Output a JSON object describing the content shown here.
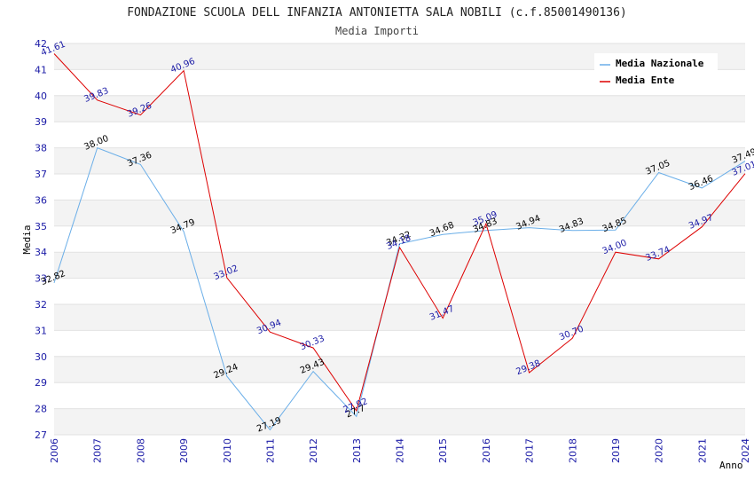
{
  "chart_data": {
    "type": "line",
    "title": "FONDAZIONE SCUOLA DELL INFANZIA ANTONIETTA SALA NOBILI (c.f.85001490136)",
    "subtitle": "Media Importi",
    "xlabel": "Anno",
    "ylabel": "Media",
    "ylim": [
      27,
      42
    ],
    "yticks": [
      27,
      28,
      29,
      30,
      31,
      32,
      33,
      34,
      35,
      36,
      37,
      38,
      39,
      40,
      41,
      42
    ],
    "x": [
      "2006",
      "2007",
      "2008",
      "2009",
      "2010",
      "2011",
      "2012",
      "2013",
      "2014",
      "2015",
      "2016",
      "2017",
      "2018",
      "2019",
      "2020",
      "2021",
      "2024"
    ],
    "legend_position": "top-right",
    "grid": true,
    "series": [
      {
        "name": "Media Nazionale",
        "color": "#6aaee8",
        "label_color": "#000000",
        "values": [
          32.82,
          38.0,
          37.36,
          34.79,
          29.24,
          27.19,
          29.43,
          27.7,
          34.32,
          34.68,
          34.83,
          34.94,
          34.83,
          34.85,
          37.05,
          36.46,
          37.49
        ],
        "labels": [
          "32.82",
          "38.00",
          "37.36",
          "34.79",
          "29.24",
          "27.19",
          "29.43",
          "27.7",
          "34.32",
          "34.68",
          "34.83",
          "34.94",
          "34.83",
          "34.85",
          "37.05",
          "36.46",
          "37.49"
        ]
      },
      {
        "name": "Media Ente",
        "color": "#dd0000",
        "label_color": "#1a1aa6",
        "values": [
          41.61,
          39.83,
          39.26,
          40.96,
          33.02,
          30.94,
          30.33,
          27.92,
          34.18,
          31.47,
          35.09,
          29.38,
          30.7,
          34.0,
          33.74,
          34.97,
          37.01
        ],
        "labels": [
          "41.61",
          "39.83",
          "39.26",
          "40.96",
          "33.02",
          "30.94",
          "30.33",
          "27.92",
          "34.18",
          "31.47",
          "35.09",
          "29.38",
          "30.70",
          "34.00",
          "33.74",
          "34.97",
          "37.01"
        ]
      }
    ]
  }
}
